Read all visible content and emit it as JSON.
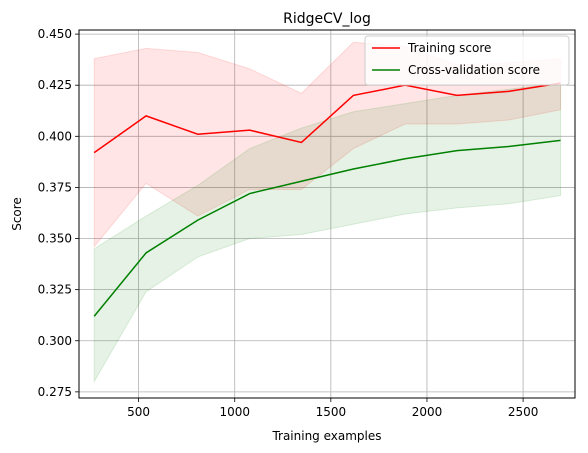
{
  "chart_data": {
    "type": "line",
    "title": "RidgeCV_log",
    "xlabel": "Training examples",
    "ylabel": "Score",
    "xlim": [
      190,
      2770
    ],
    "ylim": [
      0.272,
      0.452
    ],
    "xticks": [
      500,
      1000,
      1500,
      2000,
      2500
    ],
    "xtick_labels": [
      "500",
      "1000",
      "1500",
      "2000",
      "2500"
    ],
    "yticks": [
      0.275,
      0.3,
      0.325,
      0.35,
      0.375,
      0.4,
      0.425,
      0.45
    ],
    "ytick_labels": [
      "0.275",
      "0.300",
      "0.325",
      "0.350",
      "0.375",
      "0.400",
      "0.425",
      "0.450"
    ],
    "grid": true,
    "legend_position": "top-right",
    "x": [
      269,
      539,
      808,
      1078,
      1347,
      1617,
      1886,
      2156,
      2425,
      2695
    ],
    "series": [
      {
        "name": "Training score",
        "color": "#ff0000",
        "band_color": "#ff0000",
        "values": [
          0.392,
          0.41,
          0.401,
          0.403,
          0.397,
          0.42,
          0.425,
          0.42,
          0.422,
          0.426
        ],
        "upper": [
          0.438,
          0.443,
          0.441,
          0.433,
          0.421,
          0.446,
          0.444,
          0.435,
          0.436,
          0.438
        ],
        "lower": [
          0.346,
          0.377,
          0.361,
          0.374,
          0.374,
          0.394,
          0.406,
          0.406,
          0.408,
          0.413
        ]
      },
      {
        "name": "Cross-validation score",
        "color": "#008000",
        "band_color": "#008000",
        "values": [
          0.312,
          0.343,
          0.359,
          0.372,
          0.378,
          0.384,
          0.389,
          0.393,
          0.395,
          0.398
        ],
        "upper": [
          0.345,
          0.361,
          0.376,
          0.394,
          0.404,
          0.412,
          0.416,
          0.42,
          0.423,
          0.426
        ],
        "lower": [
          0.28,
          0.324,
          0.341,
          0.35,
          0.352,
          0.357,
          0.362,
          0.365,
          0.367,
          0.371
        ]
      }
    ]
  }
}
